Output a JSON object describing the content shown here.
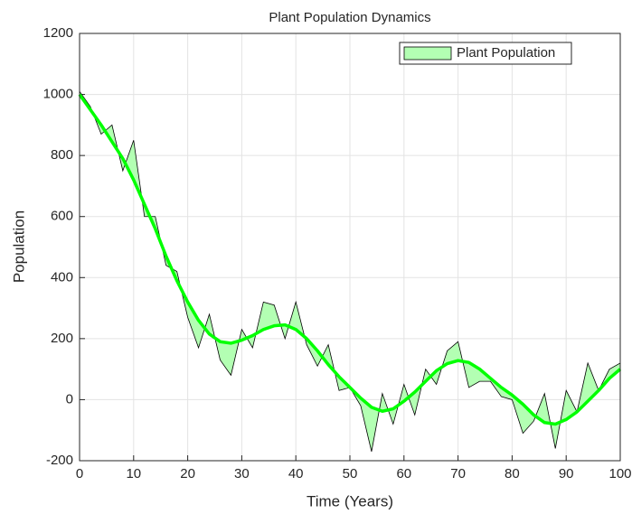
{
  "chart_data": {
    "type": "band",
    "title": "Plant Population Dynamics",
    "x_label": "Time (Years)",
    "y_label": "Population",
    "x": [
      0,
      2,
      4,
      6,
      8,
      10,
      12,
      14,
      16,
      18,
      20,
      22,
      24,
      26,
      28,
      30,
      32,
      34,
      36,
      38,
      40,
      42,
      44,
      46,
      48,
      50,
      52,
      54,
      56,
      58,
      60,
      62,
      64,
      66,
      68,
      70,
      72,
      74,
      76,
      78,
      80,
      82,
      84,
      86,
      88,
      90,
      92,
      94,
      96,
      98,
      100
    ],
    "series": [
      {
        "name": "Plant Population",
        "color": "#b3ffb3",
        "edge_color": "#000000",
        "values": [
          1010,
          960,
          870,
          900,
          750,
          850,
          600,
          600,
          440,
          420,
          270,
          170,
          280,
          130,
          80,
          230,
          170,
          320,
          310,
          200,
          320,
          180,
          110,
          180,
          30,
          40,
          -20,
          -170,
          20,
          -80,
          50,
          -50,
          100,
          50,
          160,
          190,
          40,
          60,
          60,
          10,
          0,
          -110,
          -70,
          20,
          -160,
          30,
          -40,
          120,
          30,
          100,
          120
        ]
      }
    ],
    "trend": {
      "color": "#00ff00",
      "values": [
        1000,
        950,
        900,
        845,
        790,
        720,
        640,
        560,
        470,
        390,
        320,
        260,
        215,
        190,
        185,
        195,
        210,
        230,
        242,
        245,
        230,
        200,
        160,
        115,
        75,
        40,
        5,
        -25,
        -38,
        -30,
        -5,
        25,
        60,
        95,
        118,
        128,
        122,
        100,
        70,
        40,
        15,
        -15,
        -50,
        -75,
        -80,
        -65,
        -40,
        -5,
        30,
        70,
        100
      ]
    },
    "xlim": [
      0,
      100
    ],
    "xticks": [
      0,
      10,
      20,
      30,
      40,
      50,
      60,
      70,
      80,
      90,
      100
    ],
    "ylim": [
      -200,
      1200
    ],
    "yticks": [
      -200,
      0,
      200,
      400,
      600,
      800,
      1000,
      1200
    ],
    "grid": true,
    "legend": "northeast"
  }
}
